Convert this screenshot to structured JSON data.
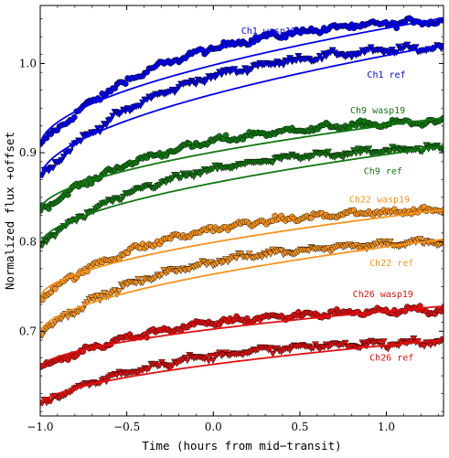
{
  "chart_data": {
    "type": "scatter",
    "title": "",
    "xlabel": "Time (hours from mid−transit)",
    "ylabel": "Normalized flux +offset",
    "xlim": [
      -1.0,
      1.33
    ],
    "ylim": [
      0.605,
      1.065
    ],
    "xticks": [
      -1.0,
      -0.5,
      0.0,
      0.5,
      1.0
    ],
    "xtick_labels": [
      "−1.0",
      "−0.5",
      "0.0",
      "0.5",
      "1.0"
    ],
    "yticks": [
      0.7,
      0.8,
      0.9,
      1.0
    ],
    "ytick_labels": [
      "0.7",
      "0.8",
      "0.9",
      "1.0"
    ],
    "grid": false,
    "legend": "none",
    "series": [
      {
        "name": "Ch1 wasp19",
        "color": "#0000ee",
        "marker": "circle",
        "start": 0.908,
        "end": 1.048,
        "model_start": 0.909,
        "model_end": 1.051,
        "label_at": [
          0.32,
          1.033
        ]
      },
      {
        "name": "Ch1 ref",
        "color": "#0000ee",
        "marker": "triangle-down",
        "start": 0.872,
        "end": 1.018,
        "model_start": 0.872,
        "model_end": 1.021,
        "label_at": [
          1.0,
          0.984
        ]
      },
      {
        "name": "Ch9 wasp19",
        "color": "#117711",
        "marker": "circle",
        "start": 0.835,
        "end": 0.935,
        "model_start": 0.836,
        "model_end": 0.939,
        "label_at": [
          0.95,
          0.944
        ]
      },
      {
        "name": "Ch9 ref",
        "color": "#117711",
        "marker": "triangle-down",
        "start": 0.797,
        "end": 0.905,
        "model_start": 0.797,
        "model_end": 0.907,
        "label_at": [
          0.98,
          0.876
        ]
      },
      {
        "name": "Ch22 wasp19",
        "color": "#f7931e",
        "marker": "circle",
        "start": 0.738,
        "end": 0.836,
        "model_start": 0.738,
        "model_end": 0.836,
        "label_at": [
          0.96,
          0.844
        ]
      },
      {
        "name": "Ch22 ref",
        "color": "#f7931e",
        "marker": "triangle-down",
        "start": 0.698,
        "end": 0.8,
        "model_start": 0.698,
        "model_end": 0.803,
        "label_at": [
          1.03,
          0.773
        ]
      },
      {
        "name": "Ch26 wasp19",
        "color": "#e01010",
        "marker": "circle",
        "start": 0.658,
        "end": 0.724,
        "model_start": 0.659,
        "model_end": 0.728,
        "label_at": [
          0.98,
          0.738
        ]
      },
      {
        "name": "Ch26 ref",
        "color": "#e01010",
        "marker": "triangle-down",
        "start": 0.617,
        "end": 0.688,
        "model_start": 0.617,
        "model_end": 0.69,
        "label_at": [
          1.03,
          0.667
        ]
      }
    ]
  }
}
